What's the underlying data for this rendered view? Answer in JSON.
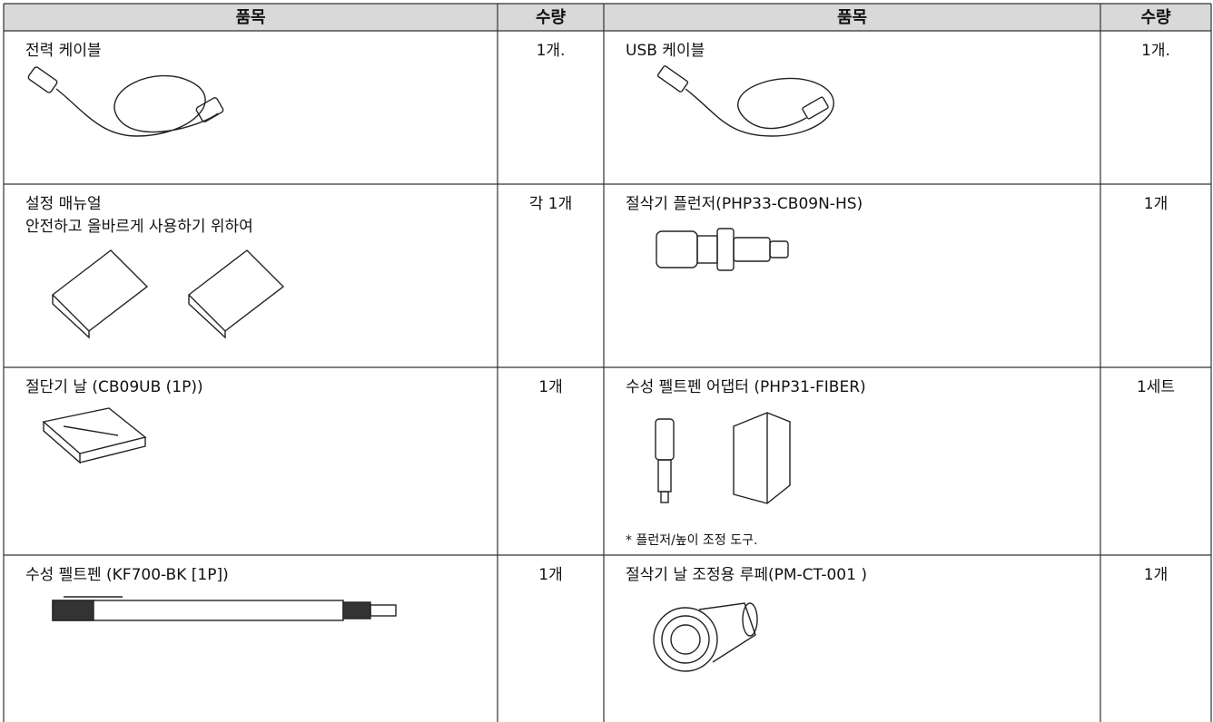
{
  "table": {
    "header": [
      "품목",
      "수량",
      "품목",
      "수량"
    ],
    "rows": [
      {
        "left_item": [
          "전력 케이블"
        ],
        "left_qty": "1개.",
        "right_item": [
          "USB 케이블"
        ],
        "right_qty": "1개."
      },
      {
        "left_item": [
          "설정 매뉴얼",
          "안전하고 올바르게 사용하기 위하여"
        ],
        "left_qty": "각 1개",
        "right_item": [
          "절삭기 플런저(PHP33-CB09N-HS)"
        ],
        "right_qty": "1개"
      },
      {
        "left_item": [
          "절단기 날 (CB09UB (1P))"
        ],
        "left_qty": "1개",
        "right_item": [
          "수성 펠트펜 어댑터 (PHP31-FIBER)"
        ],
        "right_qty": "1세트",
        "right_note": "* 플런저/높이 조정 도구."
      },
      {
        "left_item": [
          "수성 펠트펜 (KF700-BK [1P])"
        ],
        "left_qty": "1개",
        "right_item": [
          "절삭기 날 조정용 루페(PM-CT-001 )"
        ],
        "right_qty": "1개"
      }
    ]
  }
}
